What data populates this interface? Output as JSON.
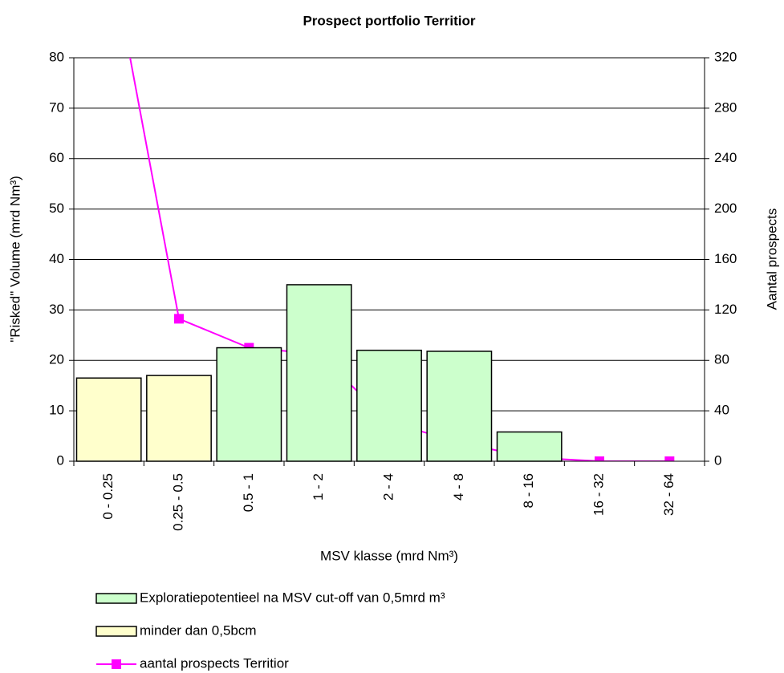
{
  "chart_data": {
    "type": "bar",
    "title": "Prospect portfolio Territior",
    "xlabel": "MSV klasse (mrd Nm³)",
    "ylabel": "\"Risked\" Volume (mrd Nm³)",
    "y2label": "Aantal prospects",
    "categories": [
      "0 - 0.25",
      "0.25 - 0.5",
      "0.5 - 1",
      "1 - 2",
      "2 - 4",
      "4 - 8",
      "8 - 16",
      "16 - 32",
      "32 - 64"
    ],
    "series": [
      {
        "name": "Exploratiepotentieel na MSV cut-off van 0,5mrd m³",
        "type": "bar",
        "color": "#ccffcc",
        "values": [
          null,
          null,
          22.5,
          35,
          22,
          21.8,
          5.8,
          null,
          null
        ]
      },
      {
        "name": "minder dan 0,5bcm",
        "type": "bar",
        "color": "#ffffcc",
        "values": [
          16.5,
          17,
          null,
          null,
          null,
          null,
          null,
          null,
          null
        ]
      },
      {
        "name": "aantal prospects Territior",
        "type": "line",
        "axis": "y2",
        "color": "#ff00ff",
        "values": [
          410,
          113,
          90,
          85,
          31,
          15,
          3,
          0,
          0
        ]
      }
    ],
    "ylim": [
      0,
      80
    ],
    "yticks": [
      0,
      10,
      20,
      30,
      40,
      50,
      60,
      70,
      80
    ],
    "y2lim": [
      0,
      320
    ],
    "y2ticks": [
      0,
      40,
      80,
      120,
      160,
      200,
      240,
      280,
      320
    ],
    "grid": true,
    "legend": "bottom"
  }
}
